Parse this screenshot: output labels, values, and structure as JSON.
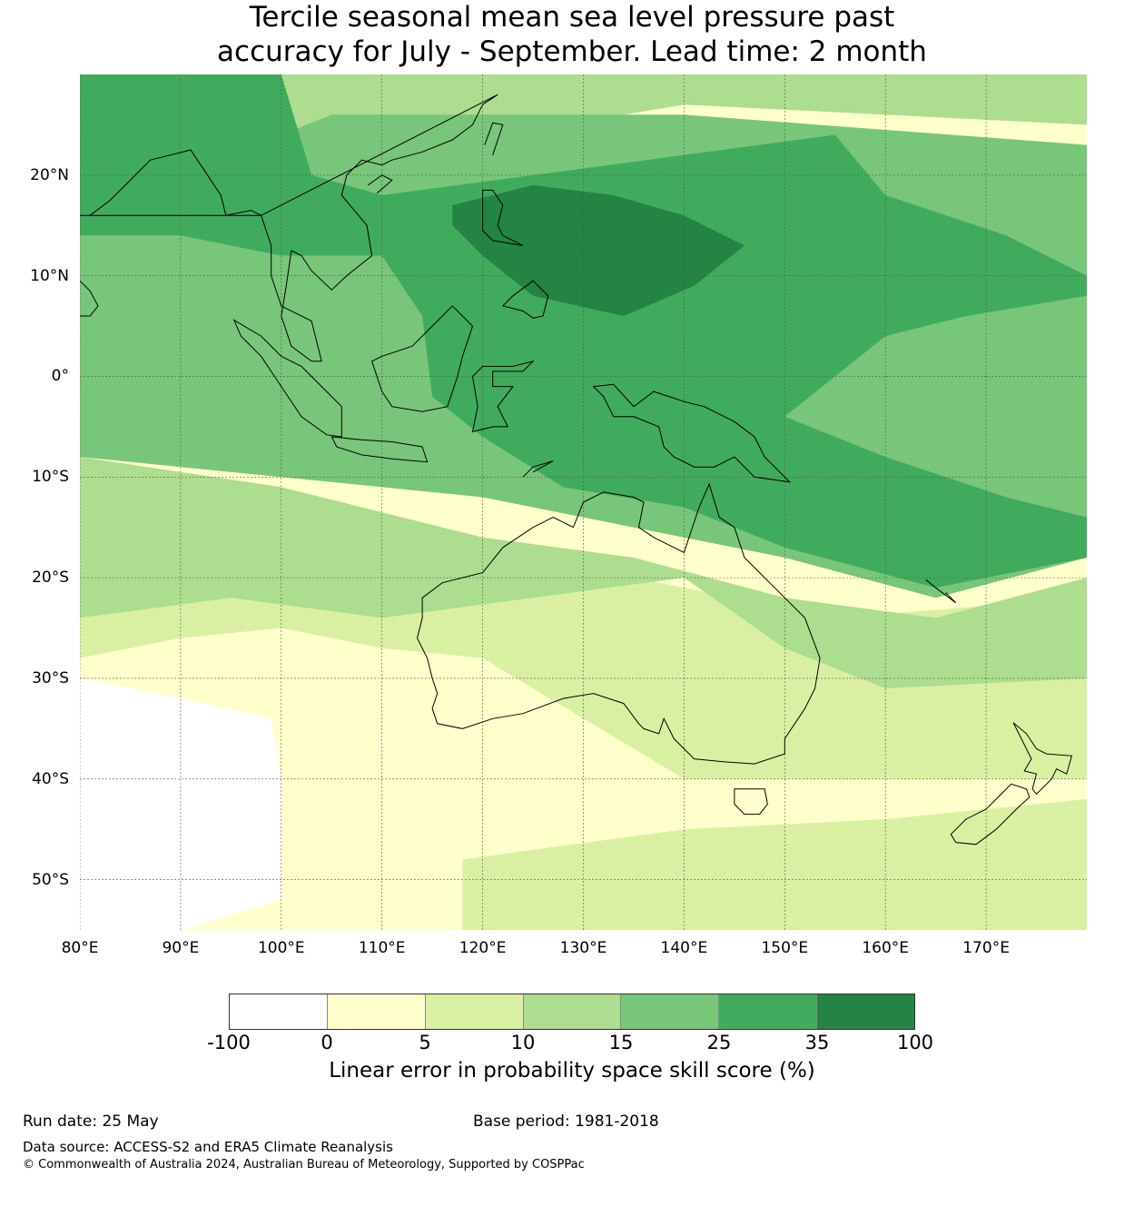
{
  "title": {
    "line1": "Tercile seasonal mean sea level pressure past",
    "line2": "accuracy for July - September. Lead time: 2 month"
  },
  "axes": {
    "lat_labels": [
      "20°N",
      "10°N",
      "0°",
      "10°S",
      "20°S",
      "30°S",
      "40°S",
      "50°S"
    ],
    "lon_labels": [
      "80°E",
      "90°E",
      "100°E",
      "110°E",
      "120°E",
      "130°E",
      "140°E",
      "150°E",
      "160°E",
      "170°E"
    ],
    "lat_range": [
      -55,
      30
    ],
    "lon_range": [
      80,
      180
    ]
  },
  "colorbar": {
    "ticks": [
      "-100",
      "0",
      "5",
      "10",
      "15",
      "25",
      "35",
      "100"
    ],
    "colors": [
      "#ffffff",
      "#ffffcc",
      "#d9f0a3",
      "#addd8e",
      "#78c679",
      "#41ab5d",
      "#238443"
    ],
    "label": "Linear error in probability space skill score (%)"
  },
  "footer": {
    "run_date": "Run date: 25 May",
    "base_period": "Base period: 1981-2018",
    "data_source": "Data source: ACCESS-S2 and ERA5 Climate Reanalysis",
    "copyright": "© Commonwealth of Australia 2024, Australian Bureau of Meteorology, Supported by COSPPac"
  }
}
